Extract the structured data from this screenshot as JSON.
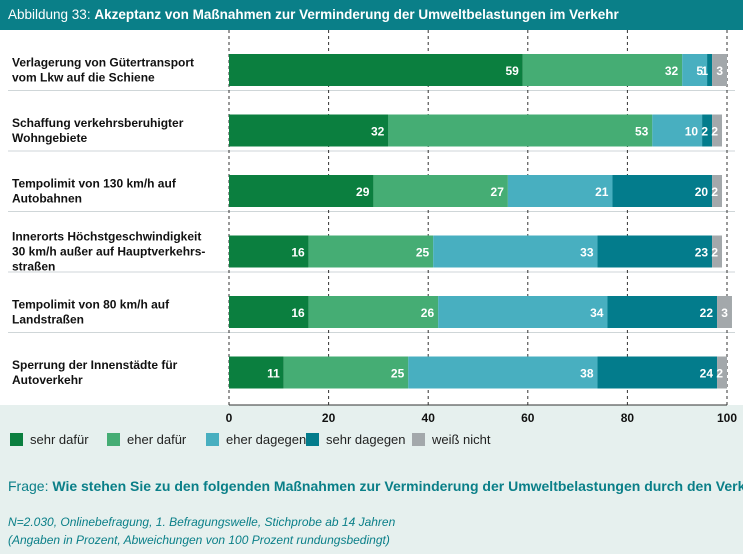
{
  "header": {
    "label": "Abbildung 33:",
    "title": "Akzeptanz von Maßnahmen zur Verminderung der Umweltbelastungen im Verkehr"
  },
  "chart_data": {
    "type": "bar",
    "orientation": "horizontal-stacked",
    "categories": [
      [
        "Verlagerung von Gütertransport",
        "vom Lkw auf die Schiene"
      ],
      [
        "Schaffung verkehrsberuhigter",
        "Wohngebiete"
      ],
      [
        "Tempolimit von 130 km/h auf",
        "Autobahnen"
      ],
      [
        "Innerorts Höchstgeschwindigkeit",
        "30 km/h  außer auf Hauptverkehrs-",
        "straßen"
      ],
      [
        "Tempolimit von 80 km/h auf",
        "Landstraßen"
      ],
      [
        "Sperrung der Innenstädte für",
        "Autoverkehr"
      ]
    ],
    "series": [
      {
        "name": "sehr dafür",
        "color": "#0b7f3f",
        "values": [
          59,
          32,
          29,
          16,
          16,
          11
        ]
      },
      {
        "name": "eher dafür",
        "color": "#45ad74",
        "values": [
          32,
          53,
          27,
          25,
          26,
          25
        ]
      },
      {
        "name": "eher dagegen",
        "color": "#48afc0",
        "values": [
          5,
          10,
          21,
          33,
          34,
          38
        ]
      },
      {
        "name": "sehr dagegen",
        "color": "#037c8c",
        "values": [
          1,
          2,
          20,
          23,
          22,
          24
        ]
      },
      {
        "name": "weiß nicht",
        "color": "#a3a8ab",
        "values": [
          3,
          2,
          2,
          2,
          3,
          2
        ]
      }
    ],
    "xlim": [
      0,
      100
    ],
    "xticks": [
      0,
      20,
      40,
      60,
      80,
      100
    ],
    "grid": true,
    "legend_position": "bottom"
  },
  "question": {
    "label": "Frage:",
    "text": "Wie stehen Sie zu den folgenden Maßnahmen zur Verminderung der Umweltbelastungen  durch den Verkehr?"
  },
  "notes": [
    "N=2.030, Onlinebefragung, 1. Befragungswelle, Stichprobe ab 14 Jahren",
    "(Angaben in Prozent, Abweichungen von 100 Prozent rundungsbedingt)"
  ]
}
